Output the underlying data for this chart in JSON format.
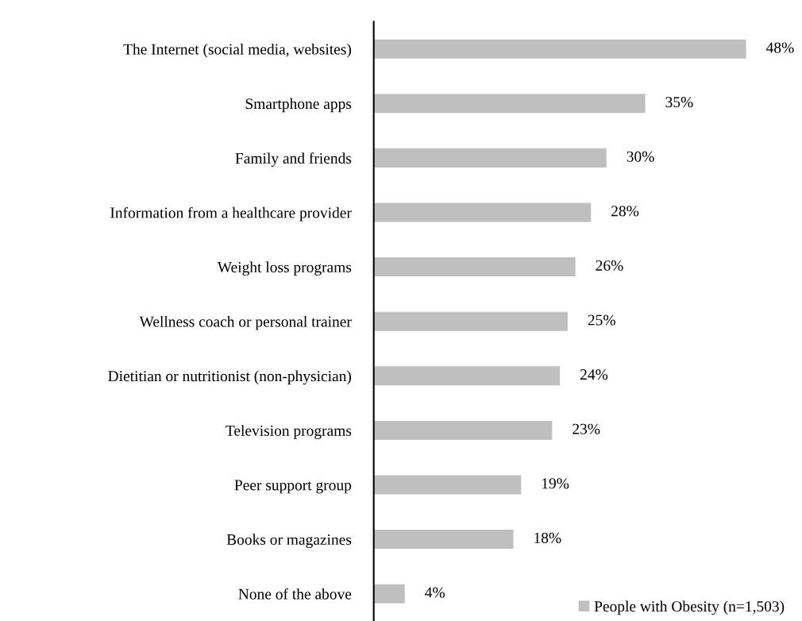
{
  "chart_data": {
    "type": "bar",
    "orientation": "horizontal",
    "categories": [
      "The Internet (social media, websites)",
      "Smartphone apps",
      "Family and friends",
      "Information from a healthcare provider",
      "Weight loss programs",
      "Wellness coach or personal trainer",
      "Dietitian or nutritionist (non-physician)",
      "Television programs",
      "Peer support group",
      "Books or magazines",
      "None of the above"
    ],
    "series": [
      {
        "name": "People with Obesity (n=1,503)",
        "color": "#bfbfbf",
        "values": [
          48,
          35,
          30,
          28,
          26,
          25,
          24,
          23,
          19,
          18,
          4
        ],
        "value_labels": [
          "48%",
          "35%",
          "30%",
          "28%",
          "26%",
          "25%",
          "24%",
          "23%",
          "19%",
          "18%",
          "4%"
        ]
      }
    ],
    "legend": "bottom right",
    "grid": false
  }
}
